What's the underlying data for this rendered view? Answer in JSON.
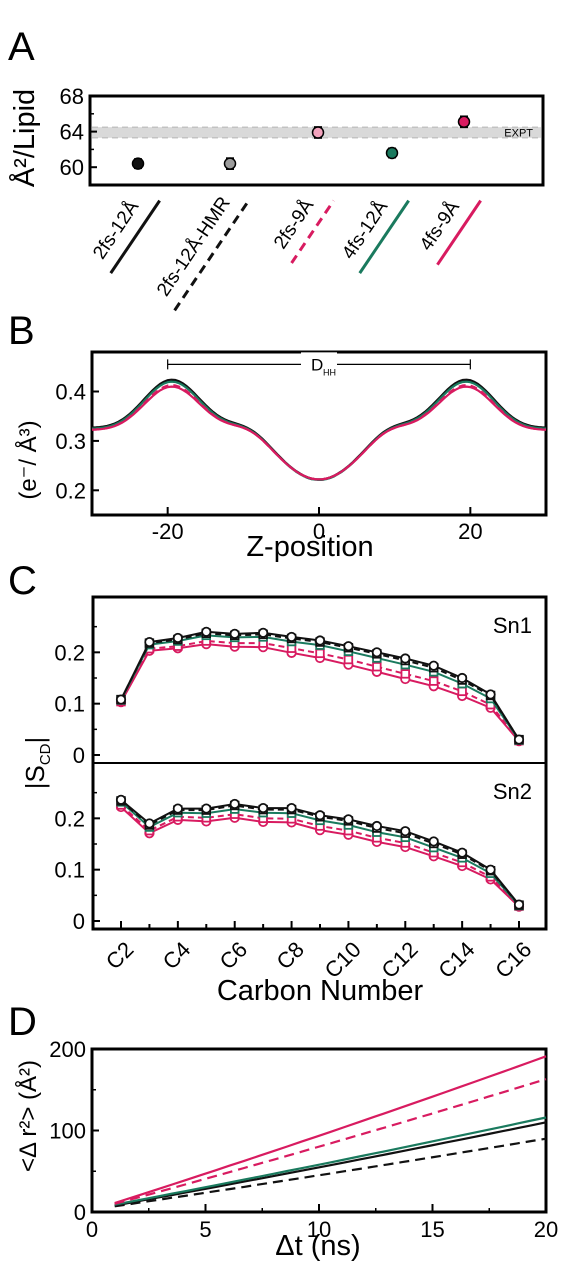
{
  "colors": {
    "black": "#111111",
    "gray": "#9c9c9c",
    "green": "#1a7a5e",
    "pink": "#d81b60",
    "pink_light": "#f3a3bd",
    "band": "#d9d9d9"
  },
  "series_legend": [
    {
      "label": "2fs-12Å",
      "color": "#111111",
      "style": "solid"
    },
    {
      "label": "2fs-12Å-HMR",
      "color": "#111111",
      "style": "dashed"
    },
    {
      "label": "2fs-9Å",
      "color": "#d81b60",
      "style": "dashed"
    },
    {
      "label": "4fs-12Å",
      "color": "#1a7a5e",
      "style": "solid"
    },
    {
      "label": "4fs-9Å",
      "color": "#d81b60",
      "style": "solid"
    }
  ],
  "chart_data": [
    {
      "panel": "A",
      "type": "scatter",
      "ylabel": "Å²/Lipid",
      "ylim": [
        58,
        68
      ],
      "yticks": [
        60,
        64,
        68
      ],
      "reference_band": {
        "label": "EXPT",
        "range": [
          63.3,
          64.5
        ]
      },
      "points": [
        {
          "label": "2fs-12Å",
          "value": 60.4,
          "error": 0.5,
          "fill": "#111111"
        },
        {
          "label": "2fs-12Å-HMR",
          "value": 60.4,
          "error": 0.6,
          "fill": "#9c9c9c"
        },
        {
          "label": "2fs-9Å",
          "value": 63.9,
          "error": 0.6,
          "fill": "#f3a3bd"
        },
        {
          "label": "4fs-12Å",
          "value": 61.6,
          "error": 0.5,
          "fill": "#1a7a5e"
        },
        {
          "label": "4fs-9Å",
          "value": 65.1,
          "error": 0.6,
          "fill": "#d81b60"
        }
      ]
    },
    {
      "panel": "B",
      "type": "line",
      "xlabel": "Z-position",
      "ylabel": "(e⁻/ Å³)",
      "xlim": [
        -30,
        30
      ],
      "ylim": [
        0.15,
        0.48
      ],
      "xticks": [
        -20,
        0,
        20
      ],
      "yticks": [
        0.2,
        0.3,
        0.4
      ],
      "annotation": {
        "label": "D",
        "sub": "HH",
        "from": -20,
        "to": 20,
        "y": 0.455
      },
      "series": [
        {
          "color": "#111111",
          "style": "solid",
          "peak": 0.425,
          "center": 0.222,
          "edge": 0.328
        },
        {
          "color": "#111111",
          "style": "dashed",
          "peak": 0.423,
          "center": 0.221,
          "edge": 0.327
        },
        {
          "color": "#1a7a5e",
          "style": "solid",
          "peak": 0.421,
          "center": 0.221,
          "edge": 0.326
        },
        {
          "color": "#d81b60",
          "style": "dashed",
          "peak": 0.414,
          "center": 0.222,
          "edge": 0.324
        },
        {
          "color": "#d81b60",
          "style": "solid",
          "peak": 0.411,
          "center": 0.222,
          "edge": 0.324
        }
      ]
    },
    {
      "panel": "C",
      "type": "line",
      "xlabel": "Carbon Number",
      "ylabel": "|S",
      "ylabel_sub": "CD",
      "ylabel_end": "|",
      "categories": [
        "C2",
        "C3",
        "C4",
        "C5",
        "C6",
        "C7",
        "C8",
        "C9",
        "C10",
        "C11",
        "C12",
        "C13",
        "C14",
        "C15",
        "C16"
      ],
      "xtick_labels": [
        "C2",
        "C4",
        "C6",
        "C8",
        "C10",
        "C12",
        "C14",
        "C16"
      ],
      "yticks_top": [
        "0.2",
        "0.1",
        "0"
      ],
      "yticks_bottom": [
        "0.2",
        "0.1",
        "0"
      ],
      "subpanels": [
        {
          "name": "Sn1",
          "ylim": [
            0,
            0.3
          ],
          "series": [
            {
              "color": "#111111",
              "style": "solid",
              "marker": "circle",
              "values": [
                0.108,
                0.22,
                0.228,
                0.24,
                0.236,
                0.238,
                0.23,
                0.223,
                0.212,
                0.2,
                0.188,
                0.174,
                0.15,
                0.118,
                0.03
              ]
            },
            {
              "color": "#111111",
              "style": "dashed",
              "marker": "square",
              "values": [
                0.108,
                0.218,
                0.225,
                0.237,
                0.233,
                0.235,
                0.227,
                0.22,
                0.209,
                0.197,
                0.184,
                0.17,
                0.146,
                0.116,
                0.03
              ]
            },
            {
              "color": "#1a7a5e",
              "style": "solid",
              "marker": "square",
              "values": [
                0.107,
                0.215,
                0.222,
                0.233,
                0.229,
                0.23,
                0.221,
                0.214,
                0.202,
                0.189,
                0.176,
                0.162,
                0.139,
                0.11,
                0.029
              ]
            },
            {
              "color": "#d81b60",
              "style": "dashed",
              "marker": "square",
              "values": [
                0.104,
                0.207,
                0.212,
                0.222,
                0.218,
                0.218,
                0.208,
                0.198,
                0.186,
                0.172,
                0.158,
                0.144,
                0.124,
                0.098,
                0.028
              ]
            },
            {
              "color": "#d81b60",
              "style": "solid",
              "marker": "circle",
              "values": [
                0.103,
                0.203,
                0.208,
                0.216,
                0.211,
                0.21,
                0.199,
                0.189,
                0.176,
                0.162,
                0.148,
                0.134,
                0.115,
                0.092,
                0.027
              ]
            }
          ]
        },
        {
          "name": "Sn2",
          "ylim": [
            0,
            0.3
          ],
          "series": [
            {
              "color": "#111111",
              "style": "solid",
              "marker": "circle",
              "values": [
                0.236,
                0.19,
                0.219,
                0.219,
                0.228,
                0.22,
                0.22,
                0.206,
                0.198,
                0.185,
                0.175,
                0.155,
                0.133,
                0.1,
                0.032
              ]
            },
            {
              "color": "#111111",
              "style": "dashed",
              "marker": "square",
              "values": [
                0.234,
                0.187,
                0.216,
                0.216,
                0.225,
                0.217,
                0.217,
                0.203,
                0.195,
                0.181,
                0.171,
                0.151,
                0.13,
                0.098,
                0.031
              ]
            },
            {
              "color": "#1a7a5e",
              "style": "solid",
              "marker": "square",
              "values": [
                0.232,
                0.183,
                0.211,
                0.21,
                0.218,
                0.211,
                0.21,
                0.196,
                0.187,
                0.173,
                0.163,
                0.143,
                0.123,
                0.093,
                0.03
              ]
            },
            {
              "color": "#d81b60",
              "style": "dashed",
              "marker": "square",
              "values": [
                0.226,
                0.176,
                0.203,
                0.201,
                0.208,
                0.2,
                0.199,
                0.185,
                0.176,
                0.162,
                0.152,
                0.133,
                0.114,
                0.086,
                0.029
              ]
            },
            {
              "color": "#d81b60",
              "style": "solid",
              "marker": "circle",
              "values": [
                0.222,
                0.171,
                0.197,
                0.194,
                0.201,
                0.193,
                0.192,
                0.177,
                0.168,
                0.154,
                0.144,
                0.126,
                0.107,
                0.081,
                0.028
              ]
            }
          ]
        }
      ]
    },
    {
      "panel": "D",
      "type": "line",
      "xlabel": "Δt (ns)",
      "ylabel": "<Δ r²> (Å²)",
      "xlim": [
        0,
        20
      ],
      "ylim": [
        0,
        200
      ],
      "xticks": [
        0,
        5,
        10,
        15,
        20
      ],
      "yticks": [
        0,
        100,
        200
      ],
      "x": [
        1,
        20
      ],
      "series": [
        {
          "color": "#111111",
          "style": "solid",
          "values": [
            8,
            110
          ]
        },
        {
          "color": "#111111",
          "style": "dashed",
          "values": [
            7,
            90
          ]
        },
        {
          "color": "#1a7a5e",
          "style": "solid",
          "values": [
            9,
            116
          ]
        },
        {
          "color": "#d81b60",
          "style": "dashed",
          "values": [
            10,
            163
          ]
        },
        {
          "color": "#d81b60",
          "style": "solid",
          "values": [
            11,
            191
          ]
        }
      ]
    }
  ]
}
